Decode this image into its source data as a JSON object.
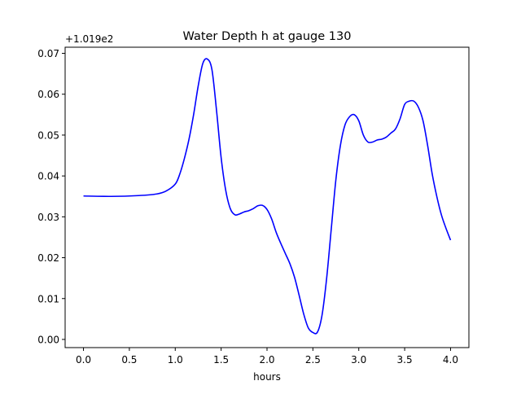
{
  "chart_data": {
    "type": "line",
    "title": "Water Depth h at gauge 130",
    "xlabel": "hours",
    "ylabel": "",
    "y_offset_label": "+1.019e2",
    "xlim": [
      -0.2,
      4.2
    ],
    "ylim": [
      -0.002,
      0.0715
    ],
    "x_ticks": [
      0.0,
      0.5,
      1.0,
      1.5,
      2.0,
      2.5,
      3.0,
      3.5,
      4.0
    ],
    "x_tick_labels": [
      "0.0",
      "0.5",
      "1.0",
      "1.5",
      "2.0",
      "2.5",
      "3.0",
      "3.5",
      "4.0"
    ],
    "y_ticks": [
      0.0,
      0.01,
      0.02,
      0.03,
      0.04,
      0.05,
      0.06,
      0.07
    ],
    "y_tick_labels": [
      "0.00",
      "0.01",
      "0.02",
      "0.03",
      "0.04",
      "0.05",
      "0.06",
      "0.07"
    ],
    "grid": false,
    "legend": "none",
    "series": [
      {
        "color": "#0000ff",
        "x": [
          0.0,
          0.3,
          0.6,
          0.8,
          0.9,
          1.0,
          1.05,
          1.1,
          1.15,
          1.2,
          1.25,
          1.3,
          1.35,
          1.4,
          1.45,
          1.5,
          1.55,
          1.6,
          1.65,
          1.7,
          1.75,
          1.8,
          1.85,
          1.9,
          1.95,
          2.0,
          2.05,
          2.1,
          2.15,
          2.2,
          2.25,
          2.3,
          2.35,
          2.4,
          2.45,
          2.5,
          2.55,
          2.6,
          2.65,
          2.7,
          2.75,
          2.8,
          2.85,
          2.9,
          2.95,
          3.0,
          3.05,
          3.1,
          3.15,
          3.2,
          3.25,
          3.3,
          3.35,
          3.4,
          3.45,
          3.5,
          3.55,
          3.6,
          3.65,
          3.7,
          3.75,
          3.8,
          3.85,
          3.9,
          3.95,
          4.0
        ],
        "y": [
          0.0351,
          0.035,
          0.0352,
          0.0356,
          0.0363,
          0.038,
          0.0405,
          0.0443,
          0.049,
          0.055,
          0.062,
          0.0675,
          0.0686,
          0.066,
          0.056,
          0.0445,
          0.0365,
          0.032,
          0.0305,
          0.0307,
          0.0312,
          0.0315,
          0.032,
          0.0327,
          0.0328,
          0.0318,
          0.0295,
          0.0262,
          0.0235,
          0.021,
          0.0185,
          0.0152,
          0.0108,
          0.0062,
          0.0028,
          0.0017,
          0.0018,
          0.006,
          0.015,
          0.027,
          0.039,
          0.0475,
          0.0525,
          0.0545,
          0.055,
          0.0535,
          0.05,
          0.0483,
          0.0483,
          0.0488,
          0.049,
          0.0495,
          0.0505,
          0.0515,
          0.054,
          0.0575,
          0.0583,
          0.0583,
          0.0568,
          0.0535,
          0.0475,
          0.0405,
          0.035,
          0.0305,
          0.0272,
          0.0243
        ]
      }
    ]
  }
}
